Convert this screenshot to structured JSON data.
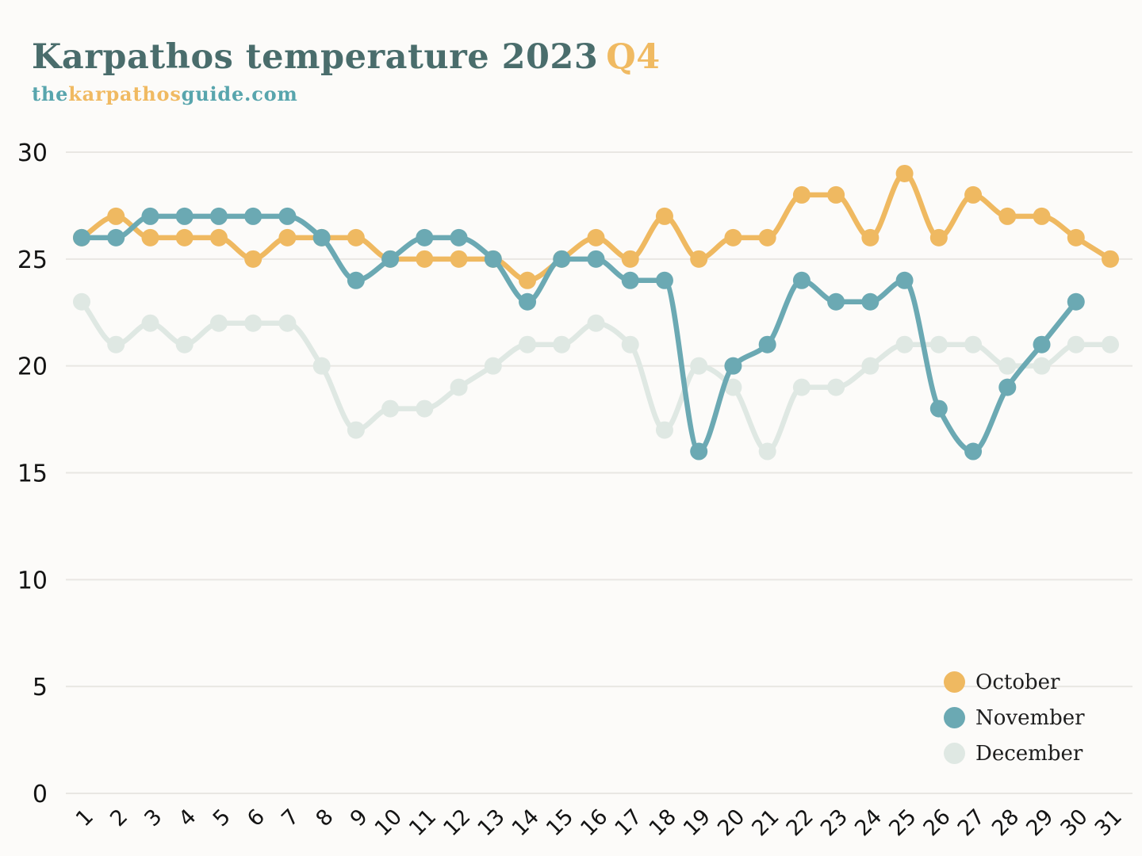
{
  "header": {
    "title_main": "Karpathos temperature 2023",
    "title_accent": "Q4",
    "subtitle_the": "the",
    "subtitle_karpathos": "karpathos",
    "subtitle_guide": "guide.com"
  },
  "colors": {
    "background": "#fcfbf9",
    "title": "#4a6d6c",
    "accent_orange": "#f0ba62",
    "subtitle_teal": "#58a5ad",
    "gridline": "#e9e7e3",
    "axis_label": "#141414",
    "legend_text": "#1e1e1e"
  },
  "chart_data": {
    "type": "line",
    "title": "Karpathos temperature 2023 Q4",
    "xlabel": "",
    "ylabel": "",
    "x": [
      1,
      2,
      3,
      4,
      5,
      6,
      7,
      8,
      9,
      10,
      11,
      12,
      13,
      14,
      15,
      16,
      17,
      18,
      19,
      20,
      21,
      22,
      23,
      24,
      25,
      26,
      27,
      28,
      29,
      30,
      31
    ],
    "ylim": [
      0,
      30
    ],
    "yticks": [
      0,
      5,
      10,
      15,
      20,
      25,
      30
    ],
    "grid": "horizontal",
    "legend_position": "right-bottom",
    "line_style": "monotone-smooth",
    "series": [
      {
        "name": "October",
        "color": "#efb961",
        "values": [
          26,
          27,
          26,
          26,
          26,
          25,
          26,
          26,
          26,
          25,
          25,
          25,
          25,
          24,
          25,
          26,
          25,
          27,
          25,
          26,
          26,
          28,
          28,
          26,
          29,
          26,
          28,
          27,
          27,
          26,
          25
        ]
      },
      {
        "name": "November",
        "color": "#6ba9b3",
        "values": [
          26,
          26,
          27,
          27,
          27,
          27,
          27,
          26,
          24,
          25,
          26,
          26,
          25,
          23,
          25,
          25,
          24,
          24,
          16,
          20,
          21,
          24,
          23,
          23,
          24,
          18,
          16,
          19,
          21,
          23
        ]
      },
      {
        "name": "December",
        "color": "#dfe8e3",
        "values": [
          23,
          21,
          22,
          21,
          22,
          22,
          22,
          20,
          17,
          18,
          18,
          19,
          20,
          21,
          21,
          22,
          21,
          17,
          20,
          19,
          16,
          19,
          19,
          20,
          21,
          21,
          21,
          20,
          20,
          21,
          21
        ]
      }
    ]
  }
}
